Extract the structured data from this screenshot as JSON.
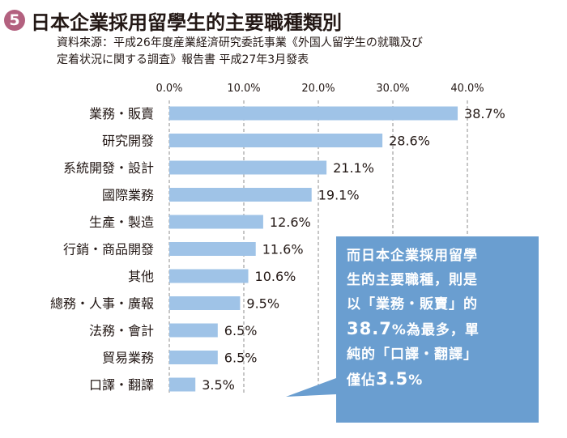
{
  "header": {
    "badge": "5",
    "title": "日本企業採用留學生的主要職種類別",
    "source_line1": "資料來源：平成26年度産業経済研究委託事業《外国人留学生の就職及び",
    "source_line2": "定着状況に関する調査》報告書 平成27年3月發表"
  },
  "chart_data": {
    "type": "bar",
    "orientation": "horizontal",
    "title": "日本企業採用留學生的主要職種類別",
    "categories": [
      "業務・販賣",
      "研究開發",
      "系統開發・設計",
      "國際業務",
      "生產・製造",
      "行銷・商品開發",
      "其他",
      "總務・人事・廣報",
      "法務・會計",
      "貿易業務",
      "口譯・翻譯"
    ],
    "values": [
      38.7,
      28.6,
      21.1,
      19.1,
      12.6,
      11.6,
      10.6,
      9.5,
      6.5,
      6.5,
      3.5
    ],
    "value_labels": [
      "38.7%",
      "28.6%",
      "21.1%",
      "19.1%",
      "12.6%",
      "11.6%",
      "10.6%",
      "9.5%",
      "6.5%",
      "6.5%",
      "3.5%"
    ],
    "ticks": [
      "0.0%",
      "10.0%",
      "20.0%",
      "30.0%",
      "40.0%"
    ],
    "xlim": [
      0,
      40
    ],
    "grid": "dashed vertical",
    "bar_color": "#9fc3e7",
    "xlabel": "",
    "ylabel": ""
  },
  "callout": {
    "color": "#6a9ed0",
    "line1": "而日本企業採用留學",
    "line2": "生的主要職種，則是",
    "line3": "以「業務・販賣」的",
    "line4_big": "38.7",
    "line4_rest": "%為最多，單",
    "line5": "純的「口譯・翻譯」",
    "line6_pre": "僅佔",
    "line6_big": "3.5",
    "line6_post": "%"
  }
}
